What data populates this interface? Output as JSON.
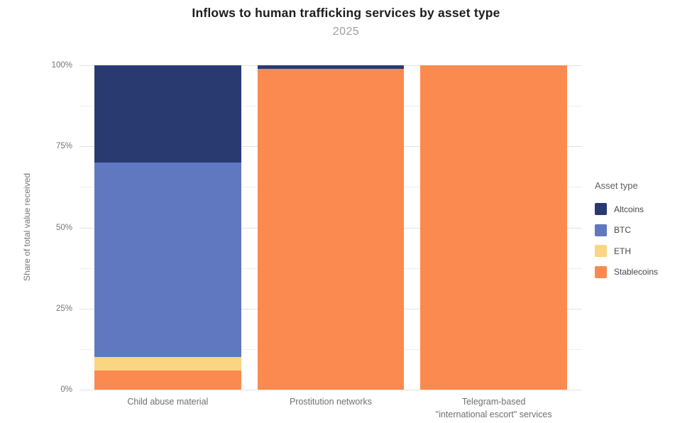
{
  "title": "Inflows to human trafficking services by asset type",
  "subtitle": "2025",
  "axes": {
    "y": {
      "title": "Share of total value received",
      "ticks": [
        "0%",
        "25%",
        "50%",
        "75%",
        "100%"
      ],
      "tick_percents": [
        0,
        25,
        50,
        75,
        100
      ],
      "minor_gridline_percents": [
        12.5,
        37.5,
        62.5,
        87.5
      ]
    },
    "x": {
      "labels": [
        "Child abuse material",
        "Prostitution networks",
        "Telegram-based\n\"international escort\" services"
      ]
    }
  },
  "legend": {
    "title": "Asset type",
    "items": [
      {
        "label": "Altcoins",
        "color": "#293A71"
      },
      {
        "label": "BTC",
        "color": "#5F78BF"
      },
      {
        "label": "ETH",
        "color": "#FAD582"
      },
      {
        "label": "Stablecoins",
        "color": "#FA8A50"
      }
    ]
  },
  "chart_data": {
    "type": "bar",
    "stacked": true,
    "title": "Inflows to human trafficking services by asset type",
    "subtitle": "2025",
    "xlabel": "",
    "ylabel": "Share of total value received",
    "ylim": [
      0,
      100
    ],
    "unit": "percent",
    "grid": true,
    "legend_position": "right",
    "categories": [
      "Child abuse material",
      "Prostitution networks",
      "Telegram-based \"international escort\" services"
    ],
    "series": [
      {
        "name": "Altcoins",
        "color": "#293A71",
        "values": [
          30,
          1,
          0
        ]
      },
      {
        "name": "BTC",
        "color": "#5F78BF",
        "values": [
          60,
          0,
          0
        ]
      },
      {
        "name": "ETH",
        "color": "#FAD582",
        "values": [
          4,
          0,
          0
        ]
      },
      {
        "name": "Stablecoins",
        "color": "#FA8A50",
        "values": [
          6,
          99,
          100
        ]
      }
    ]
  }
}
